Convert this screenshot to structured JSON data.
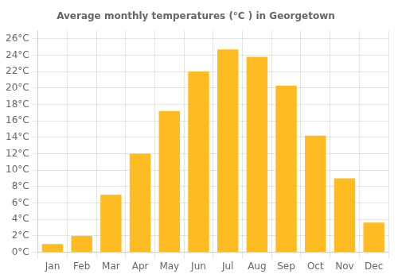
{
  "chart_data": {
    "type": "bar",
    "title": "Average monthly temperatures (°C ) in Georgetown",
    "categories": [
      "Jan",
      "Feb",
      "Mar",
      "Apr",
      "May",
      "Jun",
      "Jul",
      "Aug",
      "Sep",
      "Oct",
      "Nov",
      "Dec"
    ],
    "values": [
      1.0,
      2.0,
      7.0,
      12.0,
      17.2,
      22.0,
      24.7,
      23.8,
      20.3,
      14.2,
      9.0,
      3.6
    ],
    "color": "#FFBB22",
    "ylim": [
      0,
      27
    ],
    "yticks": [
      {
        "value": 0,
        "label": "0°C"
      },
      {
        "value": 2,
        "label": "2°C"
      },
      {
        "value": 4,
        "label": "4°C"
      },
      {
        "value": 6,
        "label": "6°C"
      },
      {
        "value": 8,
        "label": "8°C"
      },
      {
        "value": 10,
        "label": "10°C"
      },
      {
        "value": 12,
        "label": "12°C"
      },
      {
        "value": 14,
        "label": "14°C"
      },
      {
        "value": 16,
        "label": "16°C"
      },
      {
        "value": 18,
        "label": "18°C"
      },
      {
        "value": 20,
        "label": "20°C"
      },
      {
        "value": 22,
        "label": "22°C"
      },
      {
        "value": 24,
        "label": "24°C"
      },
      {
        "value": 26,
        "label": "26°C"
      }
    ],
    "grid": true
  }
}
